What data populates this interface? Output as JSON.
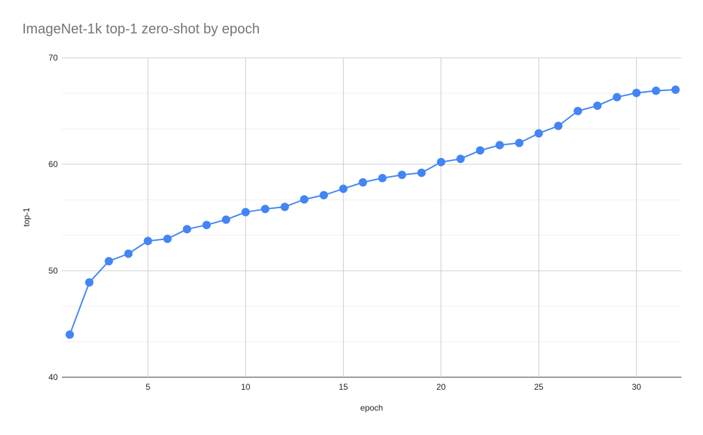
{
  "chart_data": {
    "type": "line",
    "title": "ImageNet-1k top-1 zero-shot by epoch",
    "xlabel": "epoch",
    "ylabel": "top-1",
    "xlim": [
      0.6,
      32.3
    ],
    "ylim": [
      40,
      70
    ],
    "x_ticks": [
      5,
      10,
      15,
      20,
      25,
      30
    ],
    "y_ticks": [
      40,
      50,
      60,
      70
    ],
    "y_minor_ticks": [
      43.33,
      46.67,
      53.33,
      56.67,
      63.33,
      66.67
    ],
    "grid": true,
    "legend": "none",
    "color": "#4285f4",
    "series": [
      {
        "x": [
          1,
          2,
          3,
          4,
          5,
          6,
          7,
          8,
          9,
          10,
          11,
          12,
          13,
          14,
          15,
          16,
          17,
          18,
          19,
          20,
          21,
          22,
          23,
          24,
          25,
          26,
          27,
          28,
          29,
          30,
          31,
          32
        ],
        "values": [
          44.0,
          48.9,
          50.9,
          51.6,
          52.8,
          53.0,
          53.9,
          54.3,
          54.8,
          55.5,
          55.8,
          56.0,
          56.7,
          57.1,
          57.7,
          58.3,
          58.7,
          59.0,
          59.2,
          60.2,
          60.5,
          61.3,
          61.8,
          62.0,
          62.9,
          63.6,
          65.0,
          65.5,
          66.3,
          66.7,
          66.9,
          67.0
        ]
      }
    ]
  }
}
